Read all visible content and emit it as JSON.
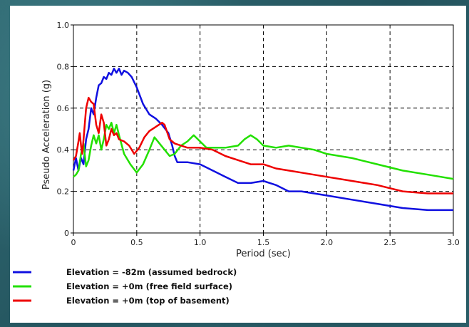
{
  "chart_data": {
    "type": "line",
    "xlabel": "Period (sec)",
    "ylabel": "Pseudo Acceleration (g)",
    "xlim": [
      0,
      3.0
    ],
    "ylim": [
      0,
      1.0
    ],
    "x_ticks": [
      "0",
      "0.5",
      "1.0",
      "1.5",
      "2.0",
      "2.5",
      "3.0"
    ],
    "y_ticks": [
      "0",
      "0.2",
      "0.4",
      "0.6",
      "0.8",
      "1.0"
    ],
    "grid": true,
    "legend_position": "bottom",
    "series": [
      {
        "name": "Elevation = -82m (assumed bedrock)",
        "color": "#1010e0",
        "points": [
          [
            0.0,
            0.3
          ],
          [
            0.02,
            0.36
          ],
          [
            0.04,
            0.3
          ],
          [
            0.06,
            0.36
          ],
          [
            0.08,
            0.33
          ],
          [
            0.1,
            0.45
          ],
          [
            0.12,
            0.5
          ],
          [
            0.14,
            0.6
          ],
          [
            0.16,
            0.57
          ],
          [
            0.18,
            0.65
          ],
          [
            0.2,
            0.71
          ],
          [
            0.22,
            0.72
          ],
          [
            0.24,
            0.75
          ],
          [
            0.26,
            0.74
          ],
          [
            0.28,
            0.77
          ],
          [
            0.3,
            0.76
          ],
          [
            0.32,
            0.79
          ],
          [
            0.34,
            0.77
          ],
          [
            0.36,
            0.79
          ],
          [
            0.38,
            0.76
          ],
          [
            0.4,
            0.78
          ],
          [
            0.43,
            0.77
          ],
          [
            0.46,
            0.75
          ],
          [
            0.5,
            0.7
          ],
          [
            0.55,
            0.62
          ],
          [
            0.6,
            0.57
          ],
          [
            0.65,
            0.55
          ],
          [
            0.7,
            0.52
          ],
          [
            0.75,
            0.48
          ],
          [
            0.78,
            0.42
          ],
          [
            0.8,
            0.37
          ],
          [
            0.82,
            0.34
          ],
          [
            0.9,
            0.34
          ],
          [
            1.0,
            0.33
          ],
          [
            1.1,
            0.3
          ],
          [
            1.2,
            0.27
          ],
          [
            1.3,
            0.24
          ],
          [
            1.4,
            0.24
          ],
          [
            1.5,
            0.25
          ],
          [
            1.6,
            0.23
          ],
          [
            1.7,
            0.2
          ],
          [
            1.8,
            0.2
          ],
          [
            2.0,
            0.18
          ],
          [
            2.2,
            0.16
          ],
          [
            2.4,
            0.14
          ],
          [
            2.6,
            0.12
          ],
          [
            2.8,
            0.11
          ],
          [
            3.0,
            0.11
          ]
        ]
      },
      {
        "name": "Elevation = +0m (free field surface)",
        "color": "#22e000",
        "points": [
          [
            0.0,
            0.27
          ],
          [
            0.02,
            0.28
          ],
          [
            0.04,
            0.3
          ],
          [
            0.06,
            0.38
          ],
          [
            0.08,
            0.43
          ],
          [
            0.1,
            0.32
          ],
          [
            0.12,
            0.35
          ],
          [
            0.14,
            0.42
          ],
          [
            0.16,
            0.47
          ],
          [
            0.18,
            0.43
          ],
          [
            0.2,
            0.47
          ],
          [
            0.22,
            0.4
          ],
          [
            0.24,
            0.45
          ],
          [
            0.26,
            0.52
          ],
          [
            0.28,
            0.5
          ],
          [
            0.3,
            0.53
          ],
          [
            0.32,
            0.48
          ],
          [
            0.34,
            0.52
          ],
          [
            0.36,
            0.47
          ],
          [
            0.4,
            0.38
          ],
          [
            0.45,
            0.33
          ],
          [
            0.5,
            0.29
          ],
          [
            0.55,
            0.33
          ],
          [
            0.6,
            0.4
          ],
          [
            0.64,
            0.46
          ],
          [
            0.68,
            0.43
          ],
          [
            0.72,
            0.4
          ],
          [
            0.76,
            0.37
          ],
          [
            0.8,
            0.38
          ],
          [
            0.85,
            0.42
          ],
          [
            0.9,
            0.44
          ],
          [
            0.95,
            0.47
          ],
          [
            1.0,
            0.44
          ],
          [
            1.05,
            0.41
          ],
          [
            1.2,
            0.41
          ],
          [
            1.3,
            0.42
          ],
          [
            1.35,
            0.45
          ],
          [
            1.4,
            0.47
          ],
          [
            1.45,
            0.45
          ],
          [
            1.5,
            0.42
          ],
          [
            1.6,
            0.41
          ],
          [
            1.7,
            0.42
          ],
          [
            1.8,
            0.41
          ],
          [
            1.9,
            0.4
          ],
          [
            2.0,
            0.38
          ],
          [
            2.2,
            0.36
          ],
          [
            2.4,
            0.33
          ],
          [
            2.6,
            0.3
          ],
          [
            2.8,
            0.28
          ],
          [
            3.0,
            0.26
          ]
        ]
      },
      {
        "name": "Elevation = +0m (top of basement)",
        "color": "#ee0000",
        "points": [
          [
            0.0,
            0.35
          ],
          [
            0.02,
            0.37
          ],
          [
            0.04,
            0.44
          ],
          [
            0.05,
            0.48
          ],
          [
            0.06,
            0.42
          ],
          [
            0.07,
            0.38
          ],
          [
            0.08,
            0.45
          ],
          [
            0.1,
            0.6
          ],
          [
            0.12,
            0.65
          ],
          [
            0.14,
            0.63
          ],
          [
            0.16,
            0.62
          ],
          [
            0.18,
            0.52
          ],
          [
            0.2,
            0.48
          ],
          [
            0.22,
            0.57
          ],
          [
            0.24,
            0.53
          ],
          [
            0.26,
            0.42
          ],
          [
            0.28,
            0.45
          ],
          [
            0.3,
            0.5
          ],
          [
            0.32,
            0.47
          ],
          [
            0.34,
            0.48
          ],
          [
            0.36,
            0.45
          ],
          [
            0.4,
            0.44
          ],
          [
            0.44,
            0.42
          ],
          [
            0.48,
            0.38
          ],
          [
            0.52,
            0.41
          ],
          [
            0.56,
            0.46
          ],
          [
            0.6,
            0.49
          ],
          [
            0.65,
            0.51
          ],
          [
            0.7,
            0.53
          ],
          [
            0.72,
            0.52
          ],
          [
            0.76,
            0.45
          ],
          [
            0.8,
            0.43
          ],
          [
            0.9,
            0.41
          ],
          [
            1.0,
            0.41
          ],
          [
            1.1,
            0.4
          ],
          [
            1.2,
            0.37
          ],
          [
            1.3,
            0.35
          ],
          [
            1.4,
            0.33
          ],
          [
            1.5,
            0.33
          ],
          [
            1.6,
            0.31
          ],
          [
            1.7,
            0.3
          ],
          [
            1.8,
            0.29
          ],
          [
            2.0,
            0.27
          ],
          [
            2.2,
            0.25
          ],
          [
            2.4,
            0.23
          ],
          [
            2.6,
            0.2
          ],
          [
            2.8,
            0.19
          ],
          [
            3.0,
            0.19
          ]
        ]
      }
    ]
  }
}
